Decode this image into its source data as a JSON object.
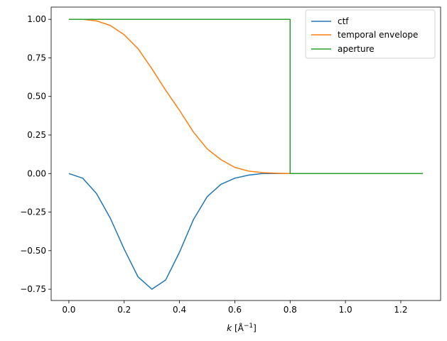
{
  "chart_data": {
    "type": "line",
    "title": "",
    "xlabel_var": "k",
    "xlabel_unit_prefix": " [Å",
    "xlabel_unit_exp": "−1",
    "xlabel_unit_suffix": "]",
    "xlim": [
      -0.064,
      1.344
    ],
    "ylim": [
      -0.8232,
      1.0792
    ],
    "xticks": [
      0.0,
      0.2,
      0.4,
      0.6,
      0.8,
      1.0,
      1.2
    ],
    "xtick_labels": [
      "0.0",
      "0.2",
      "0.4",
      "0.6",
      "0.8",
      "1.0",
      "1.2"
    ],
    "yticks": [
      -0.75,
      -0.5,
      -0.25,
      0.0,
      0.25,
      0.5,
      0.75,
      1.0
    ],
    "ytick_labels": [
      "−0.75",
      "−0.50",
      "−0.25",
      "0.00",
      "0.25",
      "0.50",
      "0.75",
      "1.00"
    ],
    "grid": false,
    "legend_position": "upper right",
    "series": [
      {
        "name": "ctf",
        "color": "#1f77b4",
        "x": [
          0,
          0.05,
          0.1,
          0.15,
          0.2,
          0.25,
          0.3,
          0.35,
          0.4,
          0.45,
          0.5,
          0.55,
          0.6,
          0.65,
          0.7,
          0.75,
          0.8,
          0.85,
          0.9,
          1.0,
          1.1,
          1.2,
          1.28
        ],
        "y": [
          0,
          -0.03,
          -0.13,
          -0.29,
          -0.49,
          -0.67,
          -0.75,
          -0.69,
          -0.51,
          -0.3,
          -0.15,
          -0.07,
          -0.03,
          -0.01,
          0,
          0,
          0,
          0,
          0,
          0,
          0,
          0,
          0
        ]
      },
      {
        "name": "temporal envelope",
        "color": "#ff7f0e",
        "x": [
          0,
          0.05,
          0.1,
          0.15,
          0.2,
          0.25,
          0.3,
          0.35,
          0.4,
          0.45,
          0.5,
          0.55,
          0.6,
          0.65,
          0.7,
          0.75,
          0.8,
          0.85,
          0.9,
          1.0,
          1.1,
          1.2,
          1.28
        ],
        "y": [
          1.0,
          1.0,
          0.99,
          0.96,
          0.9,
          0.81,
          0.68,
          0.54,
          0.41,
          0.27,
          0.16,
          0.09,
          0.04,
          0.016,
          0.006,
          0.002,
          0.0,
          0,
          0,
          0,
          0,
          0,
          0
        ]
      },
      {
        "name": "aperture",
        "color": "#2ca02c",
        "x": [
          0,
          0.8,
          0.8,
          0.805,
          1.28
        ],
        "y": [
          1.0,
          1.0,
          0.0,
          0.0,
          0.0
        ]
      }
    ]
  }
}
